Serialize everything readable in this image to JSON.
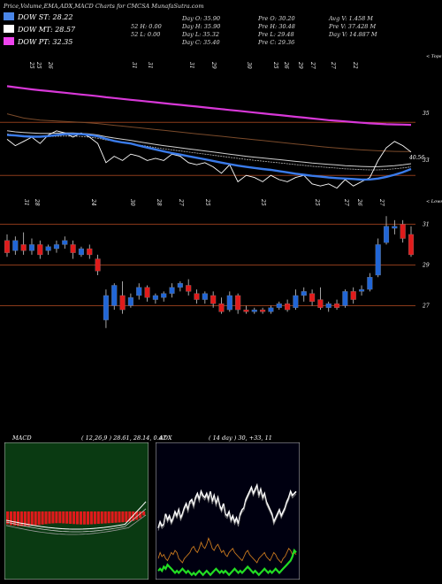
{
  "header": {
    "title": "Price,Volume,EMA,ADX,MACD Charts for CMCSA MunafaSutra.com",
    "stats": [
      [
        "Day O: 35.90",
        "Pre O: 30.20",
        "Avg V: 1.458 M"
      ],
      [
        "Day H: 35.90",
        "Pre H: 30.48",
        "Pre V: 37.428 M"
      ],
      [
        "Day L: 35.32",
        "Pre L: 29.48",
        "Day V: 14.887 M"
      ],
      [
        "Day C: 35.40",
        "Pre C: 29.36",
        ""
      ]
    ],
    "hl": [
      "52 H: 0.00",
      "52 L: 0.00"
    ]
  },
  "legend": [
    {
      "label": "DOW ST: 28.22",
      "color": "#4a86e8"
    },
    {
      "label": "DOW MT: 28.57",
      "color": "#ffffff"
    },
    {
      "label": "DOW PT: 32.35",
      "color": "#ee44ee"
    }
  ],
  "colors": {
    "up": "#2166d6",
    "down": "#e01b1b",
    "brown": "#8b3a1a",
    "ema_st": "#3a7bea",
    "ema_pt": "#d838d8",
    "adx_green": "#22dd22",
    "adx_orange": "#c8781e",
    "macd_red": "#e01b1b"
  },
  "ema_panel": {
    "top_label": "< Tops",
    "axis_labels": [
      "35",
      "33",
      "40.56"
    ],
    "top_dates": [
      "25",
      "25",
      "26",
      "31",
      "31",
      "31",
      "29",
      "30",
      "25",
      "26",
      "29",
      "27",
      "27",
      "22"
    ],
    "bottom_dates": [
      "31",
      "28",
      "24",
      "30",
      "28",
      "27",
      "25",
      "25",
      "25",
      "27",
      "26",
      "27"
    ],
    "bottom_label": "< Lows"
  },
  "candle_panel": {
    "axis_labels": [
      "31",
      "29",
      "27"
    ]
  },
  "macd": {
    "title": "MACD",
    "params": "( 12,26,9 ) 28.61, 28.14, 0.47"
  },
  "adx": {
    "title": "ADX",
    "params": "( 14 day ) 30, +33, 11"
  },
  "chart_data": {
    "type": "candlestick",
    "title": "Price,Volume,EMA,ADX,MACD Charts for CMCSA MunafaSutra.com",
    "candles": [
      {
        "o": 30.2,
        "h": 30.5,
        "c": 29.6,
        "l": 29.4
      },
      {
        "o": 29.7,
        "h": 30.4,
        "c": 30.2,
        "l": 29.5
      },
      {
        "o": 30.0,
        "h": 30.6,
        "c": 29.7,
        "l": 29.5
      },
      {
        "o": 29.7,
        "h": 30.3,
        "c": 30.0,
        "l": 29.5
      },
      {
        "o": 30.0,
        "h": 30.2,
        "c": 29.5,
        "l": 29.3
      },
      {
        "o": 29.7,
        "h": 30.0,
        "c": 29.9,
        "l": 29.5
      },
      {
        "o": 29.8,
        "h": 30.2,
        "c": 30.0,
        "l": 29.6
      },
      {
        "o": 30.0,
        "h": 30.4,
        "c": 30.2,
        "l": 29.8
      },
      {
        "o": 30.0,
        "h": 30.2,
        "c": 29.6,
        "l": 29.3
      },
      {
        "o": 29.5,
        "h": 29.9,
        "c": 29.8,
        "l": 29.4
      },
      {
        "o": 29.8,
        "h": 30.0,
        "c": 29.5,
        "l": 29.3
      },
      {
        "o": 29.3,
        "h": 29.5,
        "c": 28.7,
        "l": 28.5
      },
      {
        "o": 26.3,
        "h": 27.8,
        "c": 27.5,
        "l": 25.9
      },
      {
        "o": 27.0,
        "h": 28.1,
        "c": 28.0,
        "l": 26.8
      },
      {
        "o": 27.5,
        "h": 28.2,
        "c": 26.8,
        "l": 26.6
      },
      {
        "o": 27.0,
        "h": 27.6,
        "c": 27.4,
        "l": 26.9
      },
      {
        "o": 27.5,
        "h": 28.1,
        "c": 27.9,
        "l": 27.3
      },
      {
        "o": 27.9,
        "h": 28.0,
        "c": 27.4,
        "l": 27.2
      },
      {
        "o": 27.3,
        "h": 27.6,
        "c": 27.5,
        "l": 27.1
      },
      {
        "o": 27.4,
        "h": 27.7,
        "c": 27.6,
        "l": 27.2
      },
      {
        "o": 27.6,
        "h": 28.1,
        "c": 27.9,
        "l": 27.4
      },
      {
        "o": 27.9,
        "h": 28.2,
        "c": 28.1,
        "l": 27.7
      },
      {
        "o": 28.0,
        "h": 28.3,
        "c": 27.7,
        "l": 27.5
      },
      {
        "o": 27.6,
        "h": 27.8,
        "c": 27.3,
        "l": 27.1
      },
      {
        "o": 27.3,
        "h": 27.7,
        "c": 27.6,
        "l": 27.1
      },
      {
        "o": 27.5,
        "h": 27.7,
        "c": 27.1,
        "l": 26.9
      },
      {
        "o": 27.1,
        "h": 27.4,
        "c": 26.7,
        "l": 26.6
      },
      {
        "o": 26.8,
        "h": 27.7,
        "c": 27.5,
        "l": 26.7
      },
      {
        "o": 27.5,
        "h": 27.6,
        "c": 26.8,
        "l": 26.6
      },
      {
        "o": 26.8,
        "h": 27.0,
        "c": 26.7,
        "l": 26.6
      },
      {
        "o": 26.7,
        "h": 26.9,
        "c": 26.8,
        "l": 26.6
      },
      {
        "o": 26.8,
        "h": 26.9,
        "c": 26.7,
        "l": 26.6
      },
      {
        "o": 26.7,
        "h": 27.0,
        "c": 26.9,
        "l": 26.6
      },
      {
        "o": 26.9,
        "h": 27.2,
        "c": 27.1,
        "l": 26.8
      },
      {
        "o": 27.1,
        "h": 27.3,
        "c": 26.8,
        "l": 26.7
      },
      {
        "o": 26.9,
        "h": 27.8,
        "c": 27.5,
        "l": 26.8
      },
      {
        "o": 27.5,
        "h": 27.9,
        "c": 27.7,
        "l": 27.2
      },
      {
        "o": 27.6,
        "h": 27.8,
        "c": 27.2,
        "l": 27.0
      },
      {
        "o": 27.3,
        "h": 27.9,
        "c": 26.9,
        "l": 26.8
      },
      {
        "o": 26.9,
        "h": 27.2,
        "c": 27.1,
        "l": 26.7
      },
      {
        "o": 27.1,
        "h": 27.3,
        "c": 26.9,
        "l": 26.8
      },
      {
        "o": 27.0,
        "h": 27.8,
        "c": 27.7,
        "l": 26.9
      },
      {
        "o": 27.7,
        "h": 27.9,
        "c": 27.3,
        "l": 27.1
      },
      {
        "o": 27.7,
        "h": 28.0,
        "c": 27.8,
        "l": 27.5
      },
      {
        "o": 27.8,
        "h": 28.6,
        "c": 28.4,
        "l": 27.7
      },
      {
        "o": 28.5,
        "h": 30.3,
        "c": 30.0,
        "l": 28.4
      },
      {
        "o": 30.1,
        "h": 31.4,
        "c": 30.9,
        "l": 30.0
      },
      {
        "o": 30.8,
        "h": 31.2,
        "c": 30.9,
        "l": 30.5
      },
      {
        "o": 31.0,
        "h": 31.2,
        "c": 30.3,
        "l": 30.1
      },
      {
        "o": 30.5,
        "h": 30.9,
        "c": 29.5,
        "l": 29.4
      }
    ],
    "ema_st": [
      33.8,
      33.78,
      33.74,
      33.72,
      33.72,
      33.75,
      33.8,
      33.84,
      33.85,
      33.84,
      33.8,
      33.74,
      33.62,
      33.52,
      33.45,
      33.4,
      33.3,
      33.21,
      33.12,
      33.03,
      32.95,
      32.88,
      32.8,
      32.73,
      32.66,
      32.58,
      32.5,
      32.43,
      32.36,
      32.3,
      32.25,
      32.2,
      32.16,
      32.1,
      32.04,
      31.98,
      31.93,
      31.88,
      31.84,
      31.8,
      31.77,
      31.75,
      31.73,
      31.7,
      31.71,
      31.75,
      31.83,
      31.93,
      32.05,
      32.2
    ],
    "ema_mt": [
      34.0,
      33.95,
      33.92,
      33.9,
      33.88,
      33.88,
      33.89,
      33.9,
      33.9,
      33.88,
      33.85,
      33.8,
      33.72,
      33.66,
      33.6,
      33.55,
      33.48,
      33.42,
      33.36,
      33.3,
      33.25,
      33.2,
      33.15,
      33.1,
      33.05,
      33.0,
      32.95,
      32.9,
      32.85,
      32.8,
      32.76,
      32.72,
      32.68,
      32.64,
      32.6,
      32.56,
      32.52,
      32.48,
      32.45,
      32.42,
      32.39,
      32.36,
      32.34,
      32.32,
      32.31,
      32.31,
      32.33,
      32.36,
      32.4,
      32.45
    ],
    "ema_pt": [
      36.1,
      36.05,
      36.0,
      35.95,
      35.91,
      35.87,
      35.83,
      35.79,
      35.75,
      35.71,
      35.67,
      35.63,
      35.58,
      35.54,
      35.5,
      35.46,
      35.42,
      35.38,
      35.34,
      35.3,
      35.26,
      35.22,
      35.18,
      35.14,
      35.1,
      35.06,
      35.02,
      34.98,
      34.94,
      34.9,
      34.86,
      34.82,
      34.78,
      34.74,
      34.7,
      34.66,
      34.62,
      34.58,
      34.54,
      34.5,
      34.47,
      34.44,
      34.41,
      34.38,
      34.35,
      34.33,
      34.31,
      34.3,
      34.29,
      34.28
    ],
    "ema_brown": [
      34.8,
      34.7,
      34.6,
      34.55,
      34.5,
      34.48,
      34.46,
      34.44,
      34.42,
      34.4,
      34.37,
      34.34,
      34.3,
      34.26,
      34.22,
      34.18,
      34.14,
      34.1,
      34.06,
      34.02,
      33.98,
      33.94,
      33.9,
      33.86,
      33.82,
      33.78,
      33.74,
      33.7,
      33.66,
      33.62,
      33.58,
      33.54,
      33.5,
      33.46,
      33.42,
      33.38,
      33.34,
      33.3,
      33.26,
      33.22,
      33.19,
      33.16,
      33.13,
      33.1,
      33.08,
      33.06,
      33.04,
      33.03,
      33.02,
      33.02
    ],
    "close_line": [
      33.6,
      33.3,
      33.5,
      33.7,
      33.4,
      33.8,
      34.0,
      33.9,
      33.7,
      33.9,
      33.7,
      33.4,
      32.5,
      32.8,
      32.6,
      32.9,
      32.8,
      32.6,
      32.7,
      32.6,
      32.9,
      32.8,
      32.5,
      32.4,
      32.5,
      32.3,
      32.0,
      32.4,
      31.6,
      31.9,
      31.8,
      31.6,
      31.9,
      31.7,
      31.6,
      31.8,
      31.9,
      31.5,
      31.4,
      31.5,
      31.3,
      31.7,
      31.4,
      31.6,
      31.8,
      32.6,
      33.2,
      33.5,
      33.3,
      33.0
    ],
    "macd_hist": [
      0.58,
      0.62,
      0.64,
      0.66,
      0.67,
      0.67,
      0.66,
      0.64,
      0.62,
      0.61,
      0.59,
      0.57,
      0.55,
      0.54,
      0.53,
      0.53,
      0.54,
      0.55,
      0.56,
      0.57,
      0.58,
      0.59,
      0.59,
      0.59,
      0.58,
      0.57,
      0.56,
      0.55,
      0.54,
      0.53,
      0.52,
      0.51,
      0.5,
      0.49,
      0.48,
      0.46,
      0.43,
      0.38,
      0.3,
      0.18
    ],
    "adx_main": [
      24,
      27,
      25,
      26,
      31,
      28,
      30,
      27,
      29,
      32,
      30,
      33,
      29,
      31,
      34,
      36,
      33,
      37,
      38,
      35,
      39,
      41,
      38,
      42,
      40,
      39,
      41,
      38,
      42,
      37,
      40,
      36,
      39,
      35,
      33,
      36,
      31,
      30,
      32,
      28,
      30,
      27,
      29,
      26,
      31,
      33,
      34,
      38,
      40,
      42,
      44,
      41,
      43,
      45,
      40,
      43,
      39,
      41,
      37,
      35,
      33,
      31,
      27,
      29,
      31,
      33,
      30,
      32,
      34,
      37,
      39,
      42,
      40,
      41,
      42
    ],
    "adx_plus": [
      9,
      12,
      10,
      11,
      9,
      8,
      10,
      12,
      11,
      13,
      12,
      9,
      8,
      7,
      9,
      10,
      11,
      12,
      14,
      15,
      13,
      12,
      14,
      17,
      15,
      14,
      16,
      19,
      17,
      14,
      13,
      15,
      16,
      14,
      12,
      13,
      11,
      10,
      12,
      13,
      14,
      12,
      11,
      10,
      9,
      8,
      10,
      12,
      13,
      11,
      10,
      9,
      8,
      7,
      9,
      10,
      11,
      12,
      10,
      9,
      8,
      10,
      12,
      11,
      9,
      8,
      7,
      9,
      10,
      12,
      14,
      13,
      11,
      12,
      11
    ],
    "adx_minus": [
      3,
      4,
      3,
      5,
      4,
      6,
      5,
      4,
      3,
      2,
      3,
      2,
      3,
      4,
      3,
      2,
      3,
      2,
      1,
      2,
      1,
      2,
      3,
      2,
      1,
      2,
      3,
      2,
      1,
      2,
      3,
      4,
      3,
      2,
      3,
      2,
      3,
      2,
      1,
      2,
      3,
      4,
      3,
      2,
      3,
      2,
      3,
      4,
      5,
      4,
      3,
      2,
      3,
      2,
      1,
      2,
      3,
      4,
      3,
      2,
      3,
      2,
      3,
      4,
      3,
      2,
      3,
      4,
      5,
      6,
      7,
      8,
      10,
      13,
      12
    ]
  }
}
